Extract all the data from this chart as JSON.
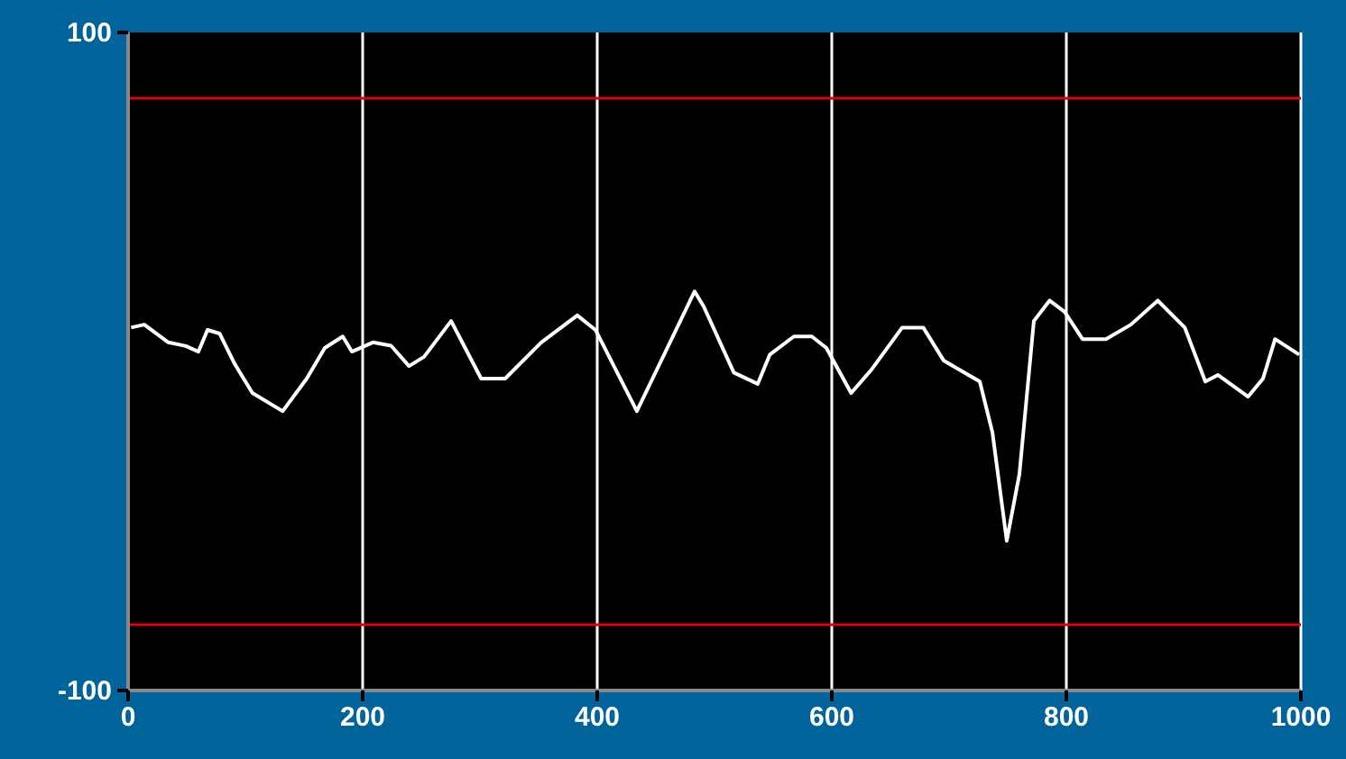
{
  "chart_data": {
    "type": "line",
    "xlim": [
      0,
      1000
    ],
    "ylim": [
      -100,
      100
    ],
    "xticks": [
      0,
      200,
      400,
      600,
      800,
      1000
    ],
    "yticks": [
      100,
      -100
    ],
    "grid": "x",
    "series": [
      {
        "color": "#ffffff",
        "x": [
          2.6,
          13.8,
          34.3,
          49.2,
          60,
          67.7,
          78,
          90.8,
          106,
          131.8,
          152.3,
          167.7,
          183,
          190.8,
          208.8,
          224.2,
          239.5,
          252.3,
          275.4,
          301,
          321.5,
          352.3,
          383,
          398.5,
          433.8,
          483,
          490.8,
          516.5,
          536.9,
          547.2,
          567.7,
          583,
          595.4,
          616.5,
          633.8,
          660,
          678,
          695.4,
          726.2,
          737,
          749.2,
          760,
          772.3,
          785.7,
          798.5,
          813.8,
          833.8,
          855,
          878,
          901,
          918.5,
          929.2,
          955,
          967.7,
          978,
          998.5
        ],
        "values": [
          10.3,
          11.2,
          5.8,
          4.7,
          3,
          9.6,
          8.5,
          -0.7,
          -9.6,
          -15.1,
          -5.2,
          4.1,
          7.6,
          3,
          5.8,
          4.8,
          -1.4,
          1.4,
          12.3,
          -5.2,
          -5.2,
          5.8,
          14,
          9.6,
          -15.1,
          21.3,
          16.7,
          -3.4,
          -6.8,
          2.1,
          7.6,
          7.6,
          4.1,
          -9.6,
          -2.5,
          10.3,
          10.3,
          0.3,
          -6.1,
          -21.6,
          -54.5,
          -34.2,
          12.3,
          18.5,
          15.1,
          6.8,
          6.8,
          11.2,
          18.5,
          10.3,
          -6.1,
          -4.1,
          -10.7,
          -5.2,
          6.8,
          2.1
        ]
      }
    ],
    "ref_lines": [
      {
        "axis": "y",
        "value": 80,
        "color": "#e00000"
      },
      {
        "axis": "y",
        "value": -80,
        "color": "#e00000"
      }
    ]
  }
}
